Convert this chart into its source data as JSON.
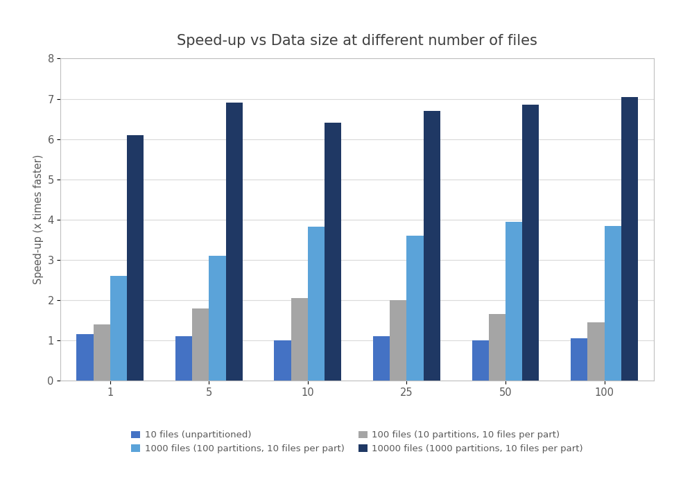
{
  "title": "Speed-up vs Data size at different number of files",
  "xlabel": "",
  "ylabel": "Speed-up (x times faster)",
  "categories": [
    1,
    5,
    10,
    25,
    50,
    100
  ],
  "series": [
    {
      "label": "10 files (unpartitioned)",
      "color": "#4472c4",
      "values": [
        1.15,
        1.1,
        1.0,
        1.1,
        1.0,
        1.05
      ]
    },
    {
      "label": "100 files (10 partitions, 10 files per part)",
      "color": "#a5a5a5",
      "values": [
        1.4,
        1.8,
        2.05,
        2.0,
        1.65,
        1.45
      ]
    },
    {
      "label": "1000 files (100 partitions, 10 files per part)",
      "color": "#5ba3d9",
      "values": [
        2.6,
        3.1,
        3.83,
        3.6,
        3.95,
        3.85
      ]
    },
    {
      "label": "10000 files (1000 partitions, 10 files per part)",
      "color": "#1f3864",
      "values": [
        6.1,
        6.9,
        6.4,
        6.7,
        6.85,
        7.05
      ]
    }
  ],
  "ylim": [
    0,
    8
  ],
  "yticks": [
    0,
    1,
    2,
    3,
    4,
    5,
    6,
    7,
    8
  ],
  "background_color": "#ffffff",
  "plot_bg_color": "#ffffff",
  "grid_color": "#d9d9d9",
  "title_fontsize": 15,
  "axis_label_fontsize": 10.5,
  "tick_fontsize": 10.5,
  "legend_fontsize": 9.5,
  "bar_width": 0.17,
  "legend_order": [
    0,
    2,
    1,
    3
  ]
}
